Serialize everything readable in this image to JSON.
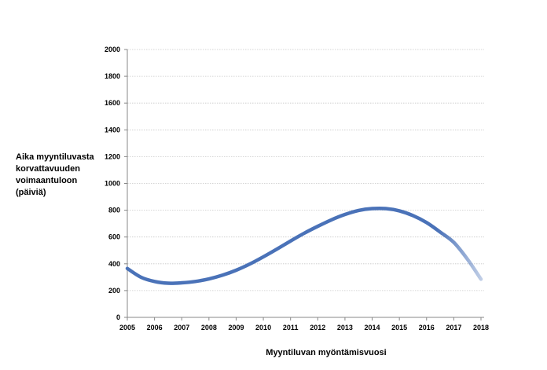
{
  "chart_data": {
    "type": "line",
    "title": "",
    "ylabel_lines": [
      "Aika myyntiluvasta",
      "korvattavuuden",
      "voimaantuloon",
      "(päiviä)"
    ],
    "xlabel": "Myyntiluvan myöntämisvuosi",
    "xlim": [
      2005,
      2018
    ],
    "ylim": [
      0,
      2000
    ],
    "x_ticks": [
      2005,
      2006,
      2007,
      2008,
      2009,
      2010,
      2011,
      2012,
      2013,
      2014,
      2015,
      2016,
      2017,
      2018
    ],
    "y_ticks": [
      0,
      200,
      400,
      600,
      800,
      1000,
      1200,
      1400,
      1600,
      1800,
      2000
    ],
    "grid": "horizontal",
    "series": [
      {
        "color": "#4a72b8",
        "x": [
          2005,
          2005.5,
          2006,
          2006.5,
          2007,
          2007.5,
          2008,
          2008.5,
          2009,
          2009.5,
          2010,
          2010.5,
          2011,
          2011.5,
          2012,
          2012.5,
          2013,
          2013.5,
          2014,
          2014.5,
          2015,
          2015.5,
          2016,
          2016.5,
          2017,
          2017.5,
          2018
        ],
        "y": [
          365,
          300,
          268,
          255,
          258,
          268,
          287,
          315,
          352,
          398,
          452,
          510,
          570,
          628,
          680,
          728,
          768,
          798,
          812,
          812,
          795,
          760,
          708,
          637,
          560,
          435,
          285
        ]
      }
    ]
  }
}
